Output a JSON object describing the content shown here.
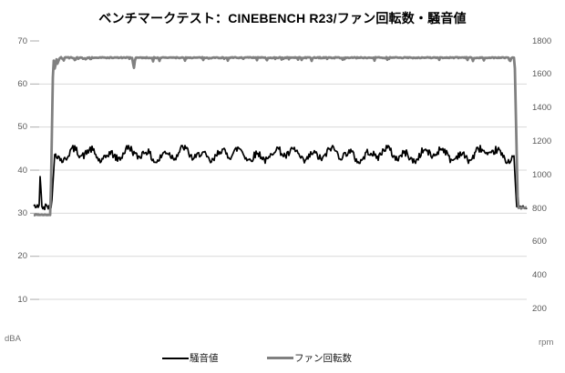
{
  "chart_data": {
    "type": "line",
    "title": "ベンチマークテスト：CINEBENCH R23/ファン回転数・騒音値",
    "x_axis": {
      "tick_labels_visible": false
    },
    "left_axis": {
      "unit": "dBA",
      "min": 0,
      "max": 70,
      "major_step": 10,
      "tick_labels": [
        "70",
        "60",
        "50",
        "40",
        "30",
        "20",
        "10"
      ]
    },
    "right_axis": {
      "unit": "rpm",
      "min": 0,
      "max": 1800,
      "major_step": 200,
      "tick_labels": [
        "1800",
        "1600",
        "1400",
        "1200",
        "1000",
        "800",
        "600",
        "400",
        "200"
      ]
    },
    "grid": {
      "horizontal": true,
      "vertical": false,
      "color": "#d9d9d9",
      "tick_color": "#ababab"
    },
    "legend": {
      "position": "bottom"
    },
    "series": [
      {
        "name": "騒音値",
        "axis": "left",
        "unit": "dBA",
        "color": "#000000",
        "stroke_width": 1.7,
        "summary": {
          "idle_level": 31.5,
          "startup_spike_peak": 38.5,
          "load_level_mean": 43.6,
          "load_band": [
            41.6,
            45.7
          ],
          "end_level": 31.4
        },
        "segments": [
          [
            0.0,
            0.011,
            31.6
          ],
          [
            0.0128,
            0.014,
            38.5
          ],
          [
            0.0158,
            0.036,
            31.3
          ],
          [
            0.0425,
            0.974,
            43.6
          ],
          [
            0.9795,
            1.0,
            31.4
          ]
        ]
      },
      {
        "name": "ファン回転数",
        "axis": "right",
        "unit": "rpm",
        "color": "#808080",
        "stroke_width": 2.8,
        "summary": {
          "idle_level": 760,
          "load_level_mean": 1700,
          "end_level": 806
        },
        "segments": [
          [
            0.0,
            0.034,
            762
          ],
          [
            0.0395,
            0.9755,
            1700
          ],
          [
            0.982,
            1.0,
            806
          ]
        ],
        "dips": [
          [
            0.043,
            78
          ],
          [
            0.0485,
            42
          ],
          [
            0.203,
            68
          ],
          [
            0.966,
            25
          ]
        ]
      }
    ]
  }
}
